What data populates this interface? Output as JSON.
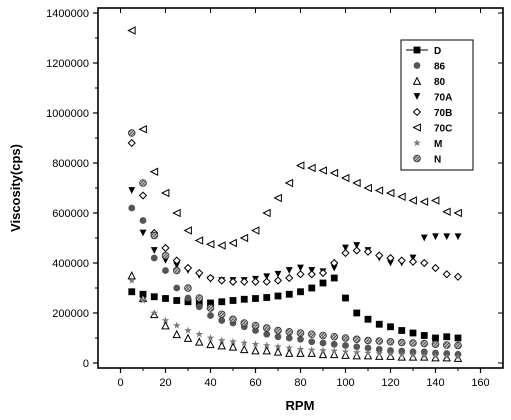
{
  "chart_data": {
    "type": "scatter",
    "xlabel": "RPM",
    "ylabel": "Viscosity(cps)",
    "xlim": [
      -10,
      170
    ],
    "ylim": [
      -20000,
      1420000
    ],
    "xticks": [
      0,
      20,
      40,
      60,
      80,
      100,
      120,
      140,
      160
    ],
    "yticks": [
      0,
      200000,
      400000,
      600000,
      800000,
      1000000,
      1200000,
      1400000
    ],
    "grid": false,
    "legend_position": "top-right",
    "series": [
      {
        "name": "D",
        "marker": "square",
        "color": "#000000",
        "x": [
          5,
          10,
          15,
          20,
          25,
          30,
          35,
          40,
          45,
          50,
          55,
          60,
          65,
          70,
          75,
          80,
          85,
          90,
          95,
          100,
          105,
          110,
          115,
          120,
          125,
          130,
          135,
          140,
          145,
          150
        ],
        "y": [
          285000,
          275000,
          265000,
          258000,
          250000,
          245000,
          240000,
          240000,
          245000,
          250000,
          255000,
          258000,
          262000,
          268000,
          275000,
          285000,
          300000,
          320000,
          340000,
          260000,
          200000,
          175000,
          155000,
          145000,
          130000,
          120000,
          110000,
          100000,
          105000,
          100000
        ]
      },
      {
        "name": "86",
        "marker": "circle",
        "color": "#555555",
        "x": [
          5,
          10,
          15,
          20,
          25,
          30,
          35,
          40,
          45,
          50,
          55,
          60,
          65,
          70,
          75,
          80,
          85,
          90,
          95,
          100,
          105,
          110,
          115,
          120,
          125,
          130,
          135,
          140,
          145,
          150
        ],
        "y": [
          620000,
          570000,
          420000,
          370000,
          300000,
          260000,
          225000,
          190000,
          170000,
          160000,
          145000,
          130000,
          115000,
          105000,
          100000,
          95000,
          85000,
          80000,
          75000,
          70000,
          65000,
          60000,
          55000,
          50000,
          48000,
          45000,
          45000,
          40000,
          38000,
          35000
        ]
      },
      {
        "name": "80",
        "marker": "triangle-up",
        "color": "#000000",
        "x": [
          5,
          10,
          15,
          20,
          25,
          30,
          35,
          40,
          45,
          50,
          55,
          60,
          65,
          70,
          75,
          80,
          85,
          90,
          95,
          100,
          105,
          110,
          115,
          120,
          125,
          130,
          135,
          140,
          145,
          150
        ],
        "y": [
          350000,
          260000,
          195000,
          150000,
          115000,
          100000,
          85000,
          75000,
          70000,
          65000,
          55000,
          50000,
          50000,
          45000,
          40000,
          40000,
          40000,
          35000,
          35000,
          32000,
          30000,
          30000,
          28000,
          28000,
          25000,
          25000,
          25000,
          22000,
          22000,
          20000
        ]
      },
      {
        "name": "70A",
        "marker": "triangle-down",
        "color": "#000000",
        "x": [
          5,
          10,
          15,
          20,
          25,
          30,
          35,
          40,
          45,
          50,
          55,
          60,
          65,
          70,
          75,
          80,
          85,
          90,
          95,
          100,
          105,
          110,
          115,
          120,
          125,
          130,
          135,
          140,
          145,
          150
        ],
        "y": [
          690000,
          520000,
          450000,
          410000,
          390000,
          370000,
          350000,
          335000,
          330000,
          330000,
          330000,
          335000,
          345000,
          355000,
          370000,
          380000,
          370000,
          365000,
          380000,
          460000,
          470000,
          450000,
          420000,
          400000,
          400000,
          420000,
          500000,
          505000,
          505000,
          505000
        ]
      },
      {
        "name": "70B",
        "marker": "diamond",
        "color": "#000000",
        "x": [
          5,
          10,
          15,
          20,
          25,
          30,
          35,
          40,
          45,
          50,
          55,
          60,
          65,
          70,
          75,
          80,
          85,
          90,
          95,
          100,
          105,
          110,
          115,
          120,
          125,
          130,
          135,
          140,
          145,
          150
        ],
        "y": [
          880000,
          670000,
          520000,
          460000,
          410000,
          380000,
          360000,
          340000,
          330000,
          325000,
          325000,
          325000,
          325000,
          330000,
          340000,
          355000,
          355000,
          360000,
          400000,
          440000,
          450000,
          445000,
          430000,
          420000,
          410000,
          405000,
          400000,
          380000,
          355000,
          345000
        ]
      },
      {
        "name": "70C",
        "marker": "triangle-left",
        "color": "#000000",
        "x": [
          5,
          10,
          15,
          20,
          25,
          30,
          35,
          40,
          45,
          50,
          55,
          60,
          65,
          70,
          75,
          80,
          85,
          90,
          95,
          100,
          105,
          110,
          115,
          120,
          125,
          130,
          135,
          140,
          145,
          150
        ],
        "y": [
          1330000,
          935000,
          765000,
          680000,
          600000,
          530000,
          490000,
          475000,
          470000,
          480000,
          500000,
          530000,
          600000,
          660000,
          720000,
          790000,
          780000,
          770000,
          760000,
          740000,
          720000,
          700000,
          690000,
          680000,
          665000,
          650000,
          645000,
          650000,
          605000,
          600000
        ]
      },
      {
        "name": "M",
        "marker": "star",
        "color": "#777777",
        "x": [
          5,
          10,
          15,
          20,
          25,
          30,
          35,
          40,
          45,
          50,
          55,
          60,
          65,
          70,
          75,
          80,
          85,
          90,
          95,
          100,
          105,
          110,
          115,
          120,
          125,
          130,
          135,
          140,
          145,
          150
        ],
        "y": [
          330000,
          250000,
          200000,
          170000,
          150000,
          130000,
          115000,
          100000,
          90000,
          85000,
          80000,
          75000,
          70000,
          65000,
          60000,
          55000,
          52000,
          50000,
          48000,
          45000,
          42000,
          40000,
          38000,
          36000,
          34000,
          32000,
          30000,
          28000,
          27000,
          25000
        ]
      },
      {
        "name": "N",
        "marker": "circle-hatched",
        "color": "#888888",
        "x": [
          5,
          10,
          15,
          20,
          25,
          30,
          35,
          40,
          45,
          50,
          55,
          60,
          65,
          70,
          75,
          80,
          85,
          90,
          95,
          100,
          105,
          110,
          115,
          120,
          125,
          130,
          135,
          140,
          145,
          150
        ],
        "y": [
          920000,
          720000,
          510000,
          430000,
          370000,
          300000,
          260000,
          220000,
          195000,
          175000,
          160000,
          150000,
          140000,
          130000,
          125000,
          120000,
          115000,
          110000,
          105000,
          100000,
          95000,
          90000,
          88000,
          85000,
          82000,
          80000,
          78000,
          75000,
          72000,
          70000
        ]
      }
    ]
  }
}
